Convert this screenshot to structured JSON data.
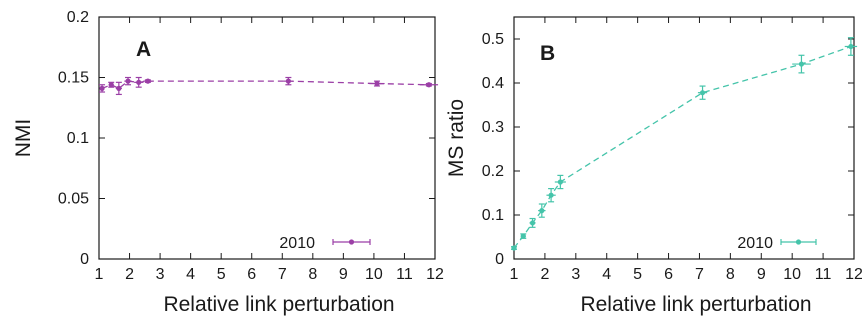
{
  "chart_data": [
    {
      "type": "line",
      "panel_label": "A",
      "xlabel": "Relative link perturbation",
      "ylabel": "NMI",
      "xlim": [
        1,
        12
      ],
      "ylim": [
        0,
        0.2
      ],
      "xticks": [
        "1",
        "2",
        "3",
        "4",
        "5",
        "6",
        "7",
        "8",
        "9",
        "10",
        "11",
        "12"
      ],
      "yticks": [
        "0",
        "0.05",
        "0.1",
        "0.15",
        "0.2"
      ],
      "legend_position": "bottom-right",
      "color": "#9b3fa6",
      "series": [
        {
          "name": "2010",
          "x": [
            1.1,
            1.4,
            1.65,
            1.95,
            2.3,
            2.6,
            7.2,
            10.1,
            11.8
          ],
          "y": [
            0.141,
            0.144,
            0.141,
            0.147,
            0.146,
            0.147,
            0.147,
            0.145,
            0.144
          ],
          "yerr": [
            0.003,
            0.002,
            0.005,
            0.003,
            0.004,
            0.001,
            0.003,
            0.002,
            0.001
          ],
          "xerr": [
            0.08,
            0.08,
            0.1,
            0.12,
            0.15,
            0.15,
            0.15,
            0.25,
            0.3
          ]
        }
      ]
    },
    {
      "type": "line",
      "panel_label": "B",
      "xlabel": "Relative link perturbation",
      "ylabel": "MS ratio",
      "xlim": [
        1,
        12
      ],
      "ylim": [
        0,
        0.55
      ],
      "xticks": [
        "1",
        "2",
        "3",
        "4",
        "5",
        "6",
        "7",
        "8",
        "9",
        "10",
        "11",
        "12"
      ],
      "yticks": [
        "0",
        "0.1",
        "0.2",
        "0.3",
        "0.4",
        "0.5"
      ],
      "legend_position": "bottom-right",
      "color": "#45c4aa",
      "series": [
        {
          "name": "2010",
          "x": [
            1.0,
            1.3,
            1.6,
            1.9,
            2.2,
            2.5,
            7.1,
            10.3,
            11.9
          ],
          "y": [
            0.025,
            0.052,
            0.082,
            0.11,
            0.145,
            0.175,
            0.378,
            0.443,
            0.483
          ],
          "yerr": [
            0.003,
            0.005,
            0.01,
            0.015,
            0.015,
            0.015,
            0.015,
            0.02,
            0.02
          ],
          "xerr": [
            0.05,
            0.08,
            0.1,
            0.12,
            0.15,
            0.18,
            0.15,
            0.3,
            0.2
          ]
        }
      ]
    }
  ]
}
